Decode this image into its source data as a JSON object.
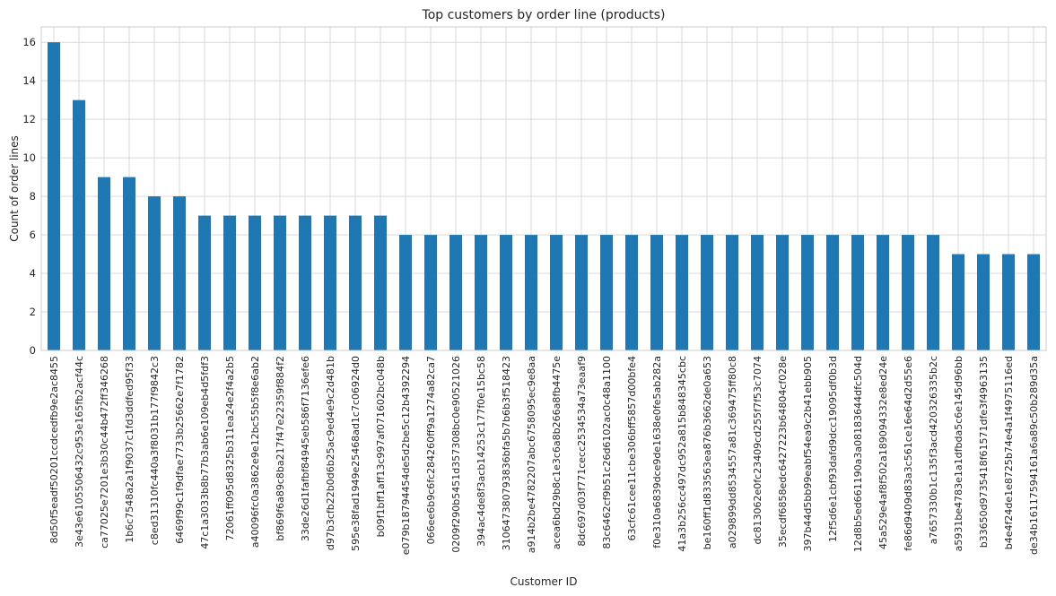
{
  "chart_data": {
    "type": "bar",
    "title": "Top customers by order line (products)",
    "xlabel": "Customer ID",
    "ylabel": "Count of order lines",
    "ylim": [
      0,
      16.8
    ],
    "yticks": [
      0,
      2,
      4,
      6,
      8,
      10,
      12,
      14,
      16
    ],
    "grid": true,
    "legend": "none",
    "bar_color": "#1f77b4",
    "categories": [
      "8d50f5eadf50201ccdcedfb9e2ac8455",
      "3e43e6105506432c953e165fb2acf44c",
      "ca77025e7201e3b30c44b472ff346268",
      "1b6c7548a2a1f9037c1fd3ddfed95f33",
      "c8ed31310fc440a3f8031b177f9842c3",
      "6469f99c1f9dfae7733b25662e7f1782",
      "47c1a3033b8b77b3ab6e109eb4d5fdf3",
      "72061ff095d8325b311ea24e2f4a2b5",
      "a40096fc0a3862e9e12bc55b5f8e6ab2",
      "bf869f6a89c8ba217f47e22359f884f2",
      "33de26d1fafbf84945eb586f7136efe6",
      "d97b3cfb22b0d6b25ac9ed4e9c2d481b",
      "595e38fad1949e25468ad1c7c06924d0",
      "b09f1bff1aff13c997af071602bc048b",
      "e079b18794454de5d2be5c12b4392294",
      "066ee6b9c6fc284260ff9a1274a82ca7",
      "0209f290b5451d357308bc0e90521026",
      "394ac4de8f3acb14253c177f0e15bc58",
      "310647380793836bfa5b7b6b3f518423",
      "a914b2be4782207abc6758095ec9e8aa",
      "acea6bd29b8c1e3c6a8b266a8fb4475e",
      "8dc697d03f771cecc2534534a73eaaf9",
      "83c6462cf9b51c26d6102ac0c48a1100",
      "63cfc61cee11cbe306bff5857d00bfe4",
      "f0e310a6839dce9de1638e0fe5ab282a",
      "41a3b256cc497dc952a815b848345cbc",
      "be160ff1d833563ea876b3662de0a653",
      "a029899dd8534557a81c369475ff80c8",
      "dc813062e0fc23409cd255f7f53c7074",
      "35ecdf6858edc6427223b64804cf028e",
      "397b44d5bb99eabf54ea9c2b41ebb905",
      "12f5d6e1cbf93dafd9dcc19095df0b3d",
      "12d8b5ed661190a3a08183644dfc504d",
      "45a529e4af8f502a189094332e8ed24e",
      "fe86d9409d83a3c561ce16e64d2d55e6",
      "a7657330b1c135f3acd420326335b2c",
      "a5931be4783e1a1dfbda5c6e145d96bb",
      "b33650d9735418f61571dfe3f4963135",
      "b4e4f24de1e8725b74e4a1f4975116ed",
      "de34b16117594161a6a89c50b289d35a"
    ],
    "values": [
      16,
      13,
      9,
      9,
      8,
      8,
      7,
      7,
      7,
      7,
      7,
      7,
      7,
      7,
      6,
      6,
      6,
      6,
      6,
      6,
      6,
      6,
      6,
      6,
      6,
      6,
      6,
      6,
      6,
      6,
      6,
      6,
      6,
      6,
      6,
      6,
      5,
      5,
      5,
      5
    ]
  }
}
